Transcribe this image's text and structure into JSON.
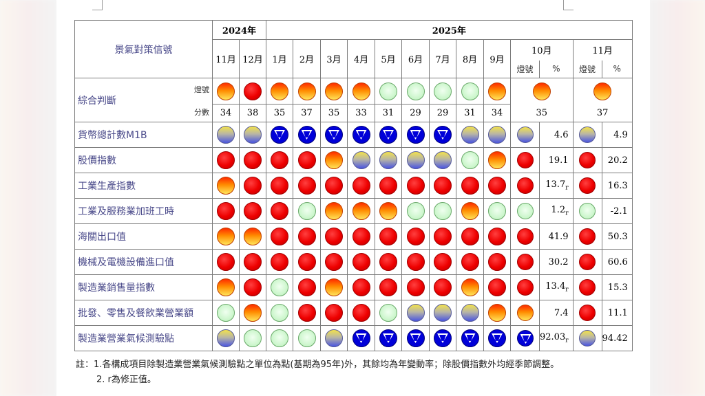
{
  "header": {
    "corner_title": "景氣對策信號",
    "year_2024": "2024年",
    "year_2025": "2025年",
    "months": [
      "11月",
      "12月",
      "1月",
      "2月",
      "3月",
      "4月",
      "5月",
      "6月",
      "7月",
      "8月",
      "9月"
    ],
    "month_oct": "10月",
    "month_nov": "11月",
    "sub_signal": "燈號",
    "sub_pct": "%"
  },
  "composite": {
    "label": "綜合判斷",
    "signal_label": "燈號",
    "score_label": "分數",
    "signals": [
      "yellowred",
      "red",
      "yellowred",
      "yellowred",
      "yellowred",
      "yellowred",
      "green",
      "green",
      "green",
      "green",
      "yellowred",
      "yellowred",
      "yellowred"
    ],
    "scores": [
      "34",
      "38",
      "35",
      "37",
      "35",
      "33",
      "31",
      "29",
      "29",
      "31",
      "34",
      "35",
      "37"
    ]
  },
  "rows": [
    {
      "label": "貨幣總計數M1B",
      "signals": [
        "yellowblue",
        "yellowblue",
        "blue",
        "blue",
        "blue",
        "blue",
        "blue",
        "blue",
        "blue",
        "yellowblue",
        "yellowblue",
        "yellowblue",
        "yellowblue"
      ],
      "oct_value": "4.6",
      "oct_r": "",
      "nov_value": "4.9"
    },
    {
      "label": "股價指數",
      "signals": [
        "red",
        "red",
        "red",
        "red",
        "yellowred",
        "yellowblue",
        "yellowblue",
        "yellowblue",
        "yellowblue",
        "green",
        "yellowred",
        "red",
        "red"
      ],
      "oct_value": "19.1",
      "oct_r": "",
      "nov_value": "20.2"
    },
    {
      "label": "工業生產指數",
      "signals": [
        "yellowred",
        "red",
        "red",
        "red",
        "red",
        "red",
        "red",
        "red",
        "red",
        "red",
        "red",
        "red",
        "red"
      ],
      "oct_value": "13.7",
      "oct_r": "r",
      "nov_value": "16.3"
    },
    {
      "label": "工業及服務業加班工時",
      "signals": [
        "red",
        "red",
        "red",
        "green",
        "yellowred",
        "yellowred",
        "yellowred",
        "green",
        "green",
        "yellowred",
        "green",
        "green",
        "green"
      ],
      "oct_value": "1.2",
      "oct_r": "r",
      "nov_value": "-2.1"
    },
    {
      "label": "海關出口值",
      "signals": [
        "yellowred",
        "yellowred",
        "red",
        "red",
        "red",
        "red",
        "red",
        "red",
        "red",
        "red",
        "red",
        "red",
        "red"
      ],
      "oct_value": "41.9",
      "oct_r": "",
      "nov_value": "50.3"
    },
    {
      "label": "機械及電機設備進口值",
      "signals": [
        "red",
        "red",
        "red",
        "red",
        "red",
        "red",
        "red",
        "red",
        "red",
        "red",
        "red",
        "red",
        "red"
      ],
      "oct_value": "30.2",
      "oct_r": "",
      "nov_value": "60.6"
    },
    {
      "label": "製造業銷售量指數",
      "signals": [
        "yellowred",
        "red",
        "green",
        "red",
        "yellowred",
        "red",
        "red",
        "red",
        "red",
        "yellowred",
        "red",
        "red",
        "red"
      ],
      "oct_value": "13.4",
      "oct_r": "r",
      "nov_value": "15.3"
    },
    {
      "label": "批發、零售及餐飲業營業額",
      "signals": [
        "green",
        "yellowred",
        "green",
        "red",
        "red",
        "red",
        "green",
        "yellowblue",
        "yellowblue",
        "yellowblue",
        "yellowred",
        "yellowred",
        "red"
      ],
      "oct_value": "7.4",
      "oct_r": "",
      "nov_value": "11.1"
    },
    {
      "label": "製造業營業氣候測驗點",
      "signals": [
        "yellowblue",
        "green",
        "green",
        "green",
        "yellowblue",
        "blue",
        "blue",
        "blue",
        "blue",
        "blue",
        "blue",
        "blue",
        "yellowblue"
      ],
      "oct_value": "92.03",
      "oct_r": "r",
      "nov_value": "94.42"
    }
  ],
  "notes": {
    "line1": "註：1.各構成項目除製造業營業氣候測驗點之單位為點(基期為95年)外，其餘均為年變動率；除股價指數外均經季節調整。",
    "line2": "2. r為修正值。"
  }
}
